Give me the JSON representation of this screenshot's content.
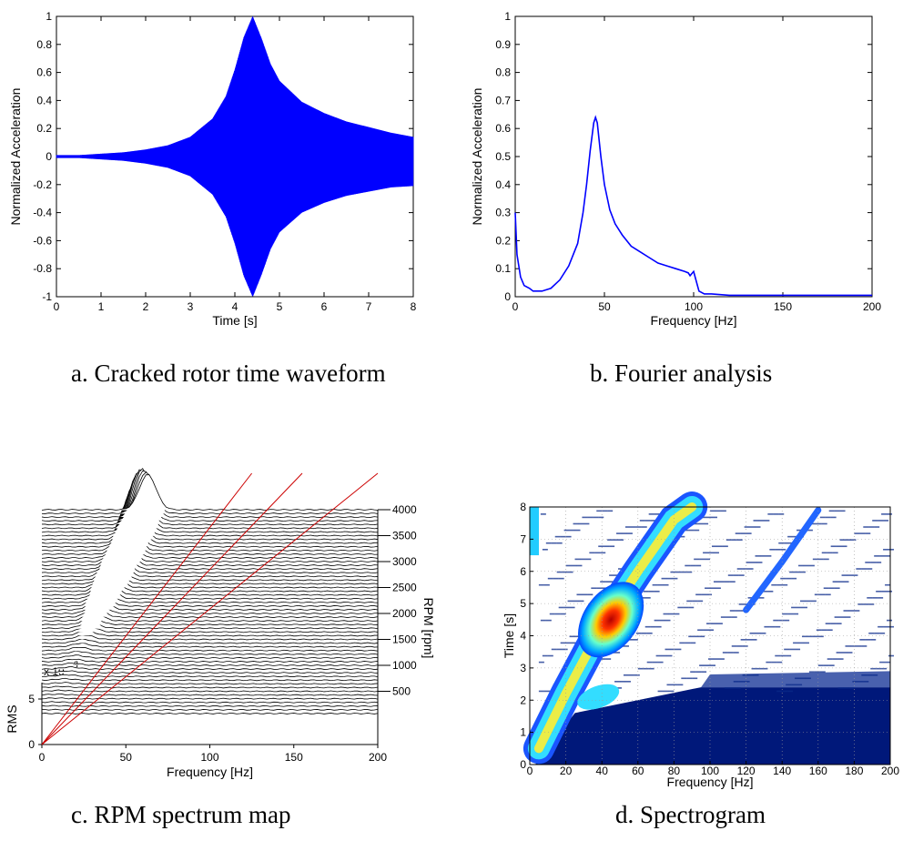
{
  "panels": {
    "a": {
      "caption": "a. Cracked rotor time waveform",
      "chart_data": {
        "type": "line",
        "xlabel": "Time [s]",
        "ylabel": "Normalized Acceleration",
        "xlim": [
          0,
          8
        ],
        "ylim": [
          -1,
          1
        ],
        "xticks": [
          0,
          1,
          2,
          3,
          4,
          5,
          6,
          7,
          8
        ],
        "yticks": [
          -1,
          -0.8,
          -0.6,
          -0.4,
          -0.2,
          0,
          0.2,
          0.4,
          0.6,
          0.8,
          1
        ],
        "grid": false,
        "series": [
          {
            "color": "#0000ff",
            "envelope_t": [
              0,
              0.5,
              1,
              1.5,
              2,
              2.5,
              3,
              3.5,
              3.8,
              4.0,
              4.2,
              4.4,
              4.6,
              4.8,
              5.0,
              5.5,
              6,
              6.5,
              7,
              7.5,
              8
            ],
            "envelope_upper": [
              0.01,
              0.01,
              0.02,
              0.03,
              0.05,
              0.08,
              0.14,
              0.27,
              0.43,
              0.62,
              0.85,
              1.0,
              0.84,
              0.66,
              0.54,
              0.39,
              0.31,
              0.25,
              0.21,
              0.17,
              0.14
            ],
            "envelope_lower": [
              -0.01,
              -0.01,
              -0.02,
              -0.03,
              -0.05,
              -0.08,
              -0.14,
              -0.27,
              -0.43,
              -0.62,
              -0.85,
              -1.0,
              -0.84,
              -0.66,
              -0.54,
              -0.4,
              -0.33,
              -0.28,
              -0.25,
              -0.22,
              -0.21
            ]
          }
        ]
      }
    },
    "b": {
      "caption": "b. Fourier analysis",
      "chart_data": {
        "type": "line",
        "xlabel": "Frequency [Hz]",
        "ylabel": "Normalized Acceleration",
        "xlim": [
          0,
          200
        ],
        "ylim": [
          0,
          1
        ],
        "xticks": [
          0,
          50,
          100,
          150,
          200
        ],
        "yticks": [
          0,
          0.1,
          0.2,
          0.3,
          0.4,
          0.5,
          0.6,
          0.7,
          0.8,
          0.9,
          1
        ],
        "grid": false,
        "series": [
          {
            "color": "#0000ff",
            "x": [
              0,
              1,
              3,
              5,
              8,
              10,
              15,
              20,
              25,
              30,
              35,
              38,
              40,
              42,
              44,
              45,
              46,
              48,
              50,
              53,
              56,
              60,
              65,
              70,
              75,
              80,
              85,
              90,
              95,
              97,
              98,
              100,
              103,
              106,
              110,
              120,
              150,
              200
            ],
            "y": [
              0.3,
              0.15,
              0.07,
              0.04,
              0.03,
              0.02,
              0.02,
              0.03,
              0.06,
              0.11,
              0.19,
              0.3,
              0.4,
              0.52,
              0.62,
              0.64,
              0.62,
              0.5,
              0.4,
              0.31,
              0.26,
              0.22,
              0.18,
              0.16,
              0.14,
              0.12,
              0.11,
              0.1,
              0.09,
              0.085,
              0.075,
              0.09,
              0.02,
              0.01,
              0.01,
              0.005,
              0.005,
              0.005
            ]
          }
        ]
      }
    },
    "c": {
      "caption": "c. RPM spectrum map",
      "chart_data": {
        "type": "waterfall",
        "xlabel": "Frequency [Hz]",
        "ylabel": "RMS",
        "y2label": "RPM [rpm]",
        "xlim": [
          0,
          200
        ],
        "ylim": [
          0,
          8
        ],
        "xticks": [
          0,
          50,
          100,
          150,
          200
        ],
        "yticks": [
          0,
          5
        ],
        "yscale_label": "x 10",
        "yscale_exponent": "-4",
        "rpm_ticks": [
          500,
          1000,
          1500,
          2000,
          2500,
          3000,
          3500,
          4000
        ],
        "rpm_max": 4000,
        "order_lines": [
          {
            "name": "",
            "color": "#cc0000",
            "points": [
              [
                0,
                0
              ],
              [
                125,
                4000
              ]
            ]
          },
          {
            "name": "",
            "color": "#cc0000",
            "points": [
              [
                0,
                0
              ],
              [
                155,
                4000
              ]
            ]
          },
          {
            "name": "",
            "color": "#cc0000",
            "points": [
              [
                0,
                0
              ],
              [
                200,
                4000
              ]
            ]
          }
        ]
      }
    },
    "d": {
      "caption": "d. Spectrogram",
      "chart_data": {
        "type": "heatmap",
        "xlabel": "Frequency [Hz]",
        "ylabel": "Time [s]",
        "xlim": [
          0,
          200
        ],
        "ylim": [
          0,
          8
        ],
        "xticks": [
          0,
          20,
          40,
          60,
          80,
          100,
          120,
          140,
          160,
          180,
          200
        ],
        "yticks": [
          0,
          1,
          2,
          3,
          4,
          5,
          6,
          7,
          8
        ],
        "grid": true,
        "ridges": [
          {
            "x": [
              5,
              20,
              40,
              60,
              80,
              90
            ],
            "y": [
              0.5,
              2.2,
              4.3,
              6.0,
              7.6,
              8.0
            ],
            "peak_at": [
              45,
              4.5
            ]
          },
          {
            "x": [
              120,
              140,
              160
            ],
            "y": [
              4.8,
              6.3,
              7.9
            ]
          }
        ]
      }
    }
  }
}
